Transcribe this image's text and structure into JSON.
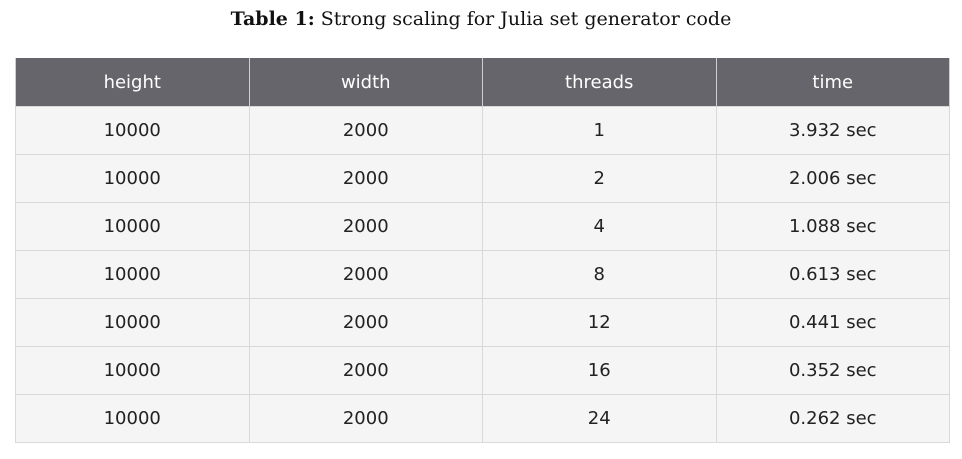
{
  "caption": {
    "label": "Table 1:",
    "text": "Strong scaling for Julia set generator code"
  },
  "table": {
    "headers": [
      "height",
      "width",
      "threads",
      "time"
    ],
    "rows": [
      [
        "10000",
        "2000",
        "1",
        "3.932 sec"
      ],
      [
        "10000",
        "2000",
        "2",
        "2.006 sec"
      ],
      [
        "10000",
        "2000",
        "4",
        "1.088 sec"
      ],
      [
        "10000",
        "2000",
        "8",
        "0.613 sec"
      ],
      [
        "10000",
        "2000",
        "12",
        "0.441 sec"
      ],
      [
        "10000",
        "2000",
        "16",
        "0.352 sec"
      ],
      [
        "10000",
        "2000",
        "24",
        "0.262 sec"
      ]
    ]
  }
}
